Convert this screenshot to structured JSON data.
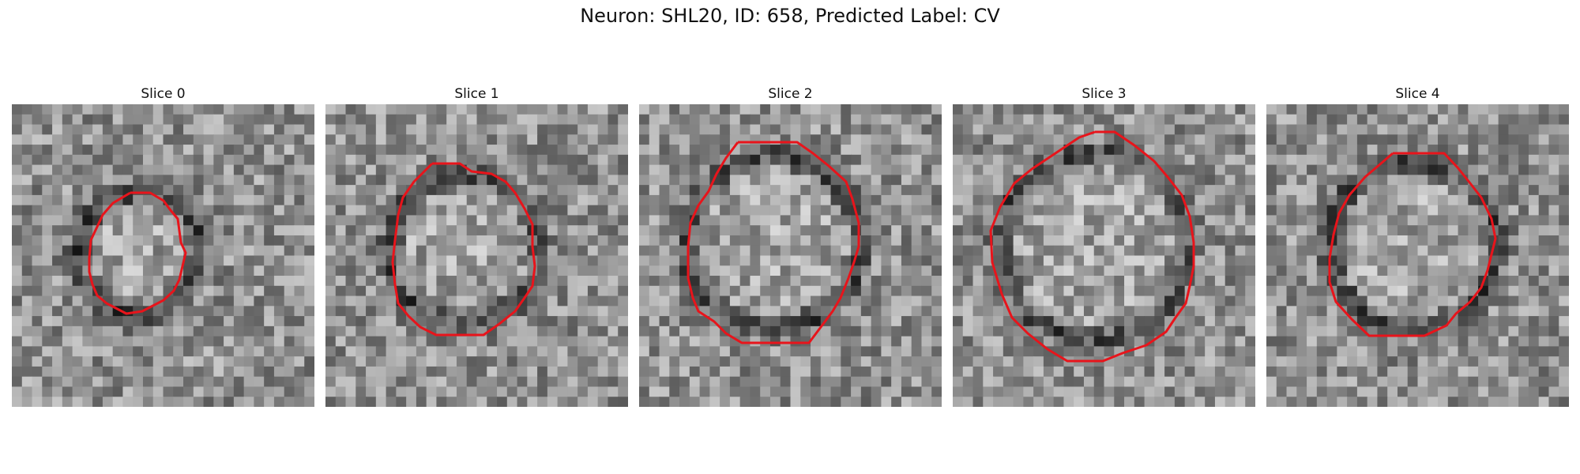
{
  "figure": {
    "title": "Neuron: SHL20, ID: 658, Predicted Label: CV"
  },
  "panels": [
    {
      "title": "Slice 0"
    },
    {
      "title": "Slice 1"
    },
    {
      "title": "Slice 2"
    },
    {
      "title": "Slice 3"
    },
    {
      "title": "Slice 4"
    }
  ],
  "colors": {
    "contour": "#e8141b",
    "background": "#ffffff"
  },
  "image_style": {
    "colormap": "grayscale",
    "contour": "red outline around dark membrane ring"
  }
}
